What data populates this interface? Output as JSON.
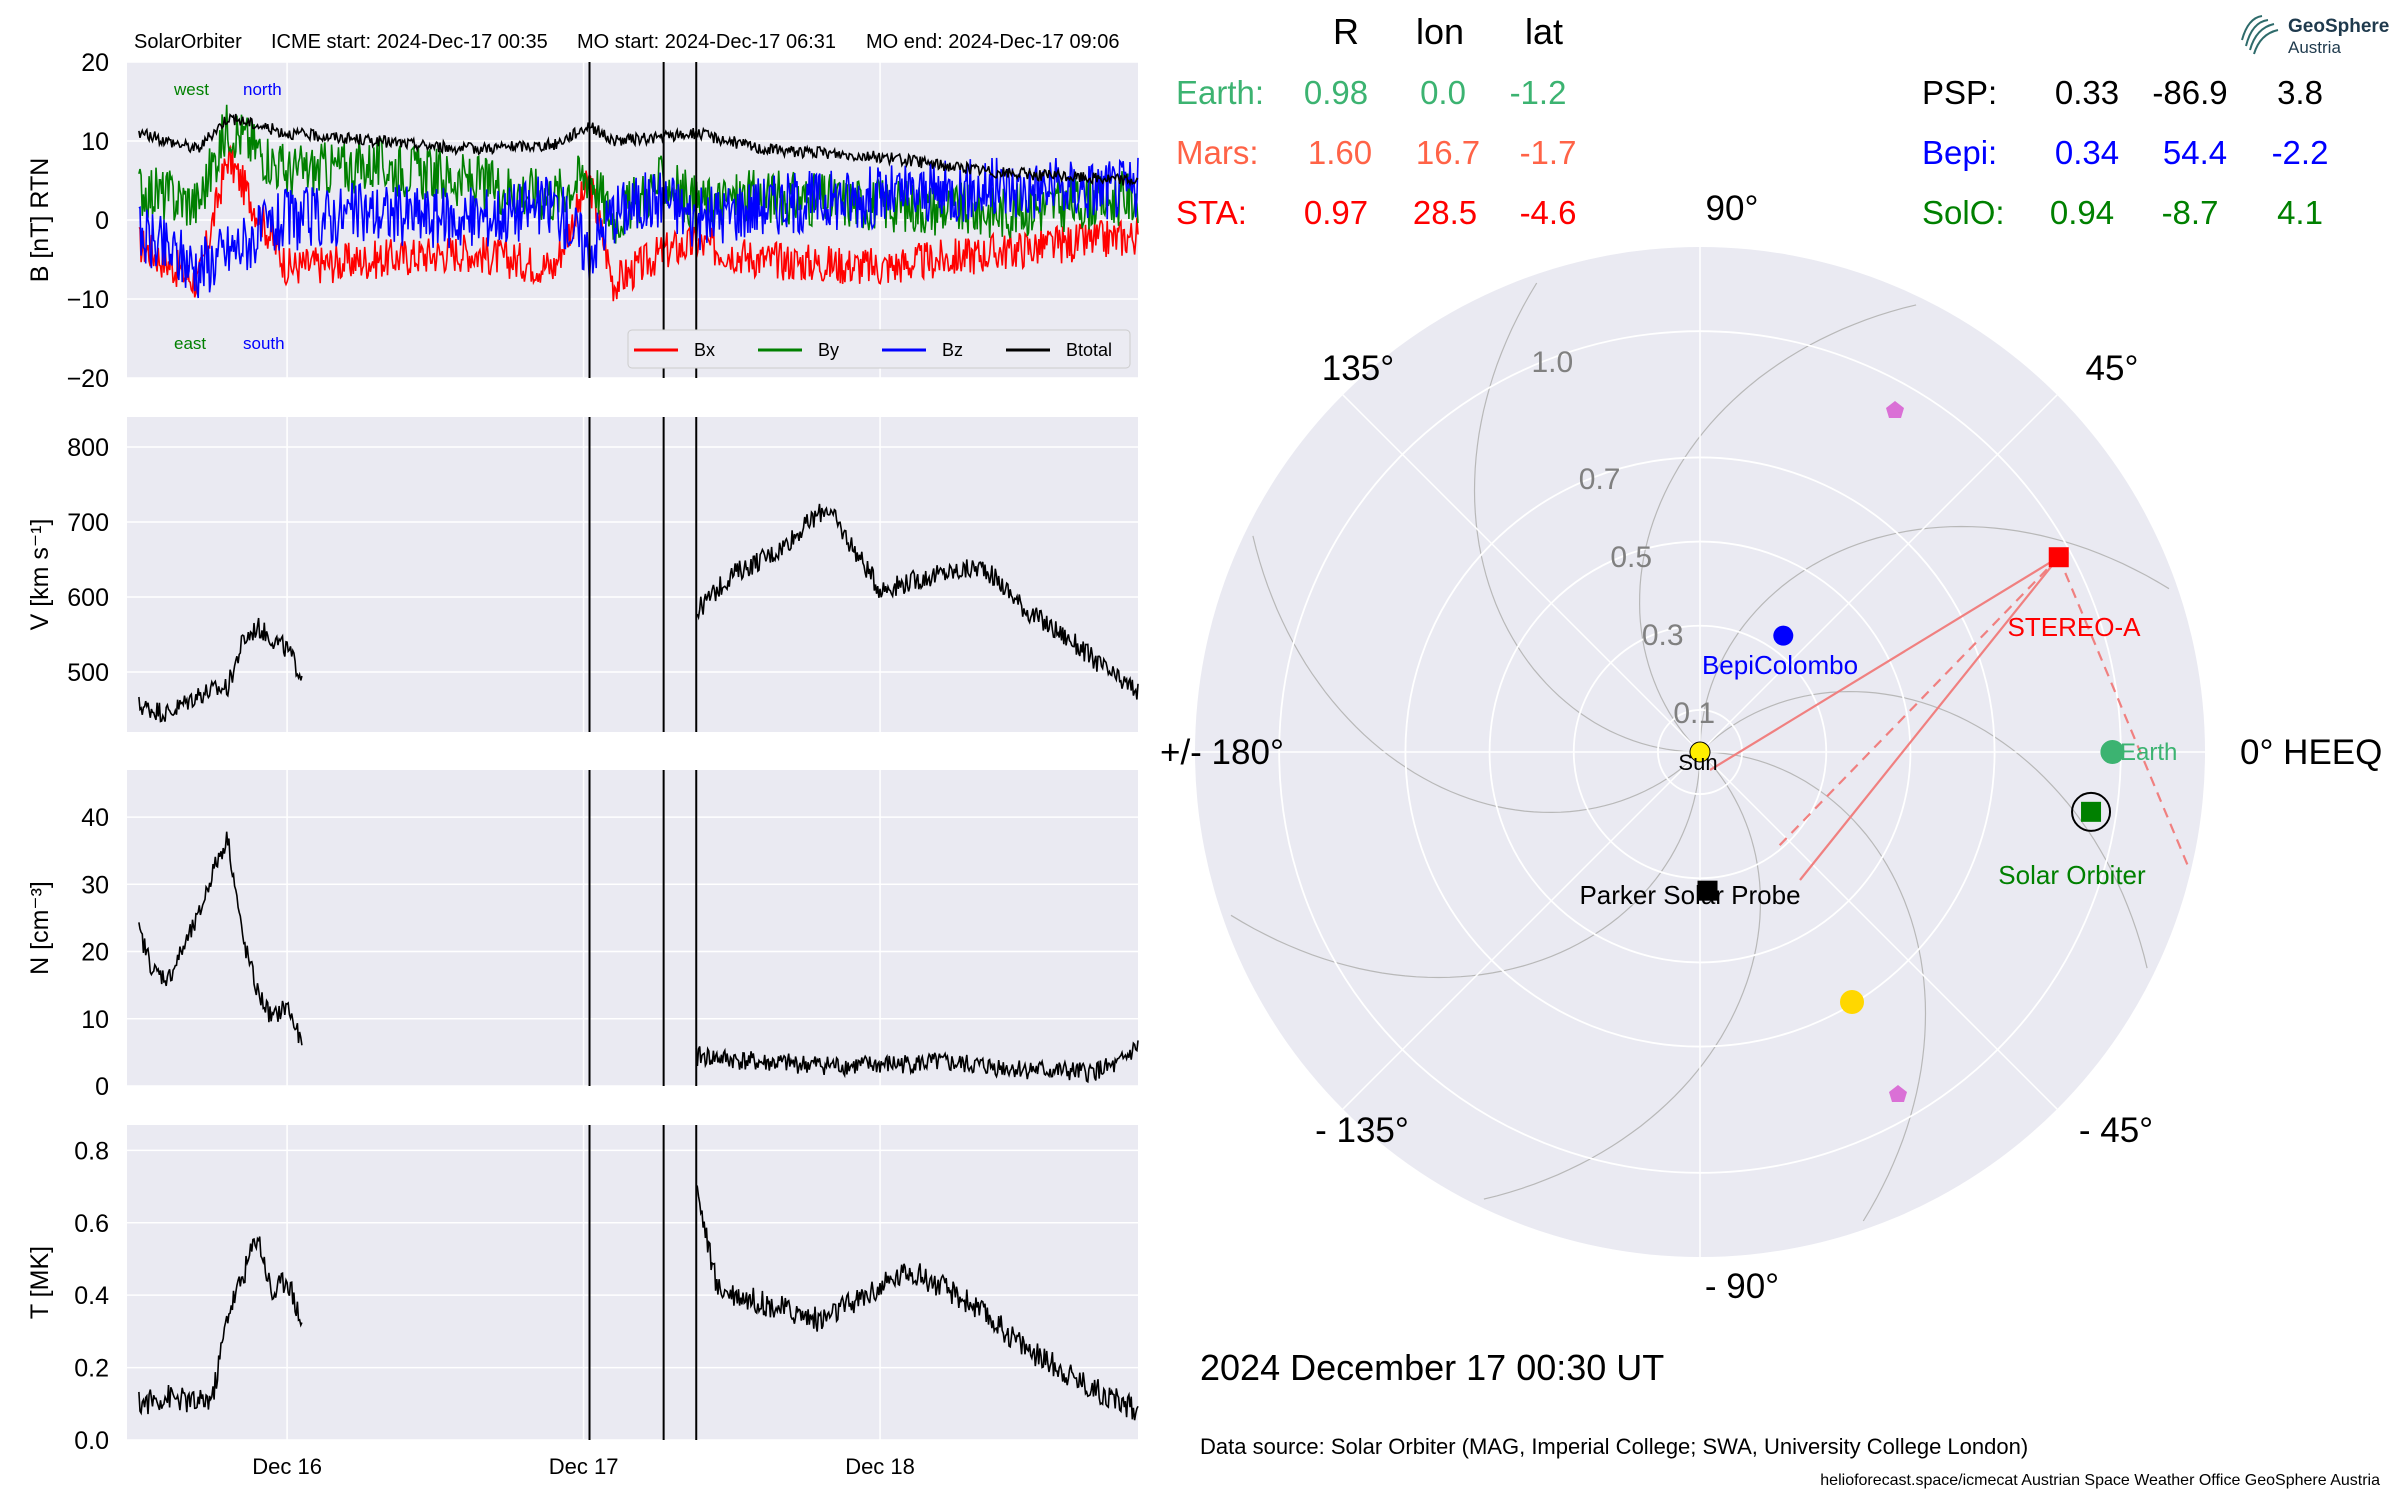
{
  "header": {
    "spacecraft": "SolarOrbiter",
    "icme_start": "ICME start: 2024-Dec-17 00:35",
    "mo_start": "MO start: 2024-Dec-17 06:31",
    "mo_end": "MO end: 2024-Dec-17 09:06"
  },
  "logo": {
    "line1": "GeoSphere",
    "line2": "Austria"
  },
  "position_table": {
    "columns": [
      "R",
      "lon",
      "lat"
    ],
    "left_rows": [
      {
        "name": "Earth:",
        "R": "0.98",
        "lon": "0.0",
        "lat": "-1.2",
        "color": "#3cb371"
      },
      {
        "name": "Mars:",
        "R": "1.60",
        "lon": "16.7",
        "lat": "-1.7",
        "color": "#ff6347"
      },
      {
        "name": "STA:",
        "R": "0.97",
        "lon": "28.5",
        "lat": "-4.6",
        "color": "#ff0000"
      }
    ],
    "right_rows": [
      {
        "name": "PSP:",
        "R": "0.33",
        "lon": "-86.9",
        "lat": "3.8",
        "color": "#000000"
      },
      {
        "name": "Bepi:",
        "R": "0.34",
        "lon": "54.4",
        "lat": "-2.2",
        "color": "#0000ff"
      },
      {
        "name": "SolO:",
        "R": "0.94",
        "lon": "-8.7",
        "lat": "4.1",
        "color": "#008000"
      }
    ]
  },
  "chart_data": [
    {
      "type": "line",
      "panel": "magnetic-field",
      "ylabel": "B [nT] RTN",
      "ylim": [
        -20,
        20
      ],
      "yticks": [
        "20",
        "10",
        "0",
        "−10",
        "−20"
      ],
      "xticks": [
        "Dec 16",
        "Dec 17",
        "Dec 18"
      ],
      "corner_labels": {
        "west": "west",
        "north": "north",
        "east": "east",
        "south": "south"
      },
      "legend": [
        "Bx",
        "By",
        "Bz",
        "Btotal"
      ],
      "series_colors": {
        "Bx": "#ff0000",
        "By": "#008000",
        "Bz": "#0000ff",
        "Btotal": "#000000"
      },
      "series": [
        {
          "name": "Btotal",
          "x": [
            15.5,
            15.7,
            15.8,
            16.0,
            16.3,
            16.6,
            16.9,
            17.02,
            17.1,
            17.27,
            17.38,
            17.6,
            18.0,
            18.4,
            18.87
          ],
          "values": [
            11,
            9,
            13,
            11,
            10,
            9,
            9.5,
            12,
            10,
            10.5,
            11,
            9,
            8,
            6,
            5
          ]
        },
        {
          "name": "Bx",
          "x": [
            15.5,
            15.7,
            15.8,
            16.0,
            16.3,
            16.6,
            16.9,
            17.02,
            17.1,
            17.27,
            17.38,
            17.6,
            18.0,
            18.4,
            18.87
          ],
          "values": [
            -3,
            -8,
            8,
            -6,
            -5,
            -4,
            -6,
            5,
            -8,
            -4,
            -3,
            -5,
            -6,
            -4,
            -2
          ]
        },
        {
          "name": "By",
          "x": [
            15.5,
            15.7,
            15.8,
            16.0,
            16.3,
            16.6,
            16.9,
            17.02,
            17.1,
            17.27,
            17.38,
            17.6,
            18.0,
            18.4,
            18.87
          ],
          "values": [
            4,
            2,
            12,
            6,
            7,
            5,
            3,
            6,
            0,
            5,
            2,
            3,
            2,
            1,
            3
          ]
        },
        {
          "name": "Bz",
          "x": [
            15.5,
            15.7,
            15.8,
            16.0,
            16.3,
            16.6,
            16.9,
            17.02,
            17.1,
            17.27,
            17.38,
            17.6,
            18.0,
            18.4,
            18.87
          ],
          "values": [
            -2,
            -6,
            -4,
            0,
            1,
            0,
            2,
            -4,
            1,
            3,
            0,
            2,
            3,
            4,
            4
          ]
        }
      ],
      "event_lines_day": [
        17.02,
        17.27,
        17.38
      ]
    },
    {
      "type": "line",
      "panel": "speed",
      "ylabel": "V [km s⁻¹]",
      "ylim": [
        420,
        840
      ],
      "yticks": [
        "800",
        "700",
        "600",
        "500"
      ],
      "segments": [
        {
          "x": [
            15.5,
            15.6,
            15.7,
            15.8,
            15.85,
            15.9,
            15.95,
            16.0,
            16.05
          ],
          "values": [
            455,
            445,
            470,
            480,
            540,
            560,
            545,
            530,
            495
          ]
        },
        {
          "x": [
            17.38,
            17.5,
            17.65,
            17.82,
            18.0,
            18.2,
            18.35,
            18.5,
            18.65,
            18.8,
            18.87
          ],
          "values": [
            580,
            630,
            660,
            720,
            610,
            630,
            640,
            580,
            540,
            490,
            475
          ]
        }
      ]
    },
    {
      "type": "line",
      "panel": "density",
      "ylabel": "N [cm⁻³]",
      "ylim": [
        0,
        47
      ],
      "yticks": [
        "40",
        "30",
        "20",
        "10",
        "0"
      ],
      "segments": [
        {
          "x": [
            15.5,
            15.55,
            15.6,
            15.7,
            15.75,
            15.8,
            15.85,
            15.9,
            15.95,
            16.0,
            16.05
          ],
          "values": [
            23,
            17,
            16,
            25,
            32,
            37,
            22,
            14,
            10,
            12,
            6
          ]
        },
        {
          "x": [
            17.38,
            17.6,
            17.9,
            18.2,
            18.5,
            18.7,
            18.8,
            18.87
          ],
          "values": [
            4.5,
            3.5,
            3,
            3.5,
            2.5,
            2,
            3,
            6
          ]
        }
      ]
    },
    {
      "type": "line",
      "panel": "temperature",
      "ylabel": "T [MK]",
      "ylim": [
        0,
        0.87
      ],
      "yticks": [
        "0.8",
        "0.6",
        "0.4",
        "0.2",
        "0.0"
      ],
      "segments": [
        {
          "x": [
            15.5,
            15.6,
            15.7,
            15.75,
            15.8,
            15.85,
            15.9,
            15.95,
            16.0,
            16.05
          ],
          "values": [
            0.1,
            0.12,
            0.1,
            0.12,
            0.35,
            0.45,
            0.57,
            0.4,
            0.45,
            0.32
          ]
        },
        {
          "x": [
            17.38,
            17.45,
            17.6,
            17.8,
            18.0,
            18.1,
            18.3,
            18.5,
            18.7,
            18.87
          ],
          "values": [
            0.7,
            0.42,
            0.38,
            0.33,
            0.42,
            0.47,
            0.38,
            0.25,
            0.15,
            0.08
          ]
        }
      ]
    },
    {
      "type": "scatter",
      "panel": "orbit-polar",
      "radial_ticks": [
        "0.1",
        "0.3",
        "0.5",
        "0.7",
        "1.0"
      ],
      "angle_labels": {
        "a0": "0° HEEQ",
        "a45": "45°",
        "a90": "90°",
        "a135": "135°",
        "a180": "+/- 180°",
        "am135": "- 135°",
        "am90": "- 90°",
        "am45": "- 45°"
      },
      "objects": [
        {
          "name": "Sun",
          "label": "Sun",
          "r": 0.0,
          "lon": 0.0,
          "color": "#ffee00",
          "marker": "circle"
        },
        {
          "name": "Earth",
          "label": "Earth",
          "r": 0.98,
          "lon": 0.0,
          "color": "#3cb371",
          "marker": "circle"
        },
        {
          "name": "STEREO-A",
          "label": "STEREO-A",
          "r": 0.97,
          "lon": 28.5,
          "color": "#ff0000",
          "marker": "square"
        },
        {
          "name": "BepiColombo",
          "label": "BepiColombo",
          "r": 0.34,
          "lon": 54.4,
          "color": "#0000ff",
          "marker": "circle"
        },
        {
          "name": "Parker Solar Probe",
          "label": "Parker Solar Probe",
          "r": 0.33,
          "lon": -86.9,
          "color": "#000000",
          "marker": "square"
        },
        {
          "name": "Solar Orbiter",
          "label": "Solar Orbiter",
          "r": 0.94,
          "lon": -8.7,
          "color": "#008000",
          "marker": "square"
        },
        {
          "name": "Mars",
          "label": "",
          "r": 1.6,
          "lon": 16.7,
          "color": "#ffd700",
          "marker": "circle"
        }
      ]
    }
  ],
  "footer": {
    "date": "2024 December 17  00:30 UT",
    "source": "Data source: Solar Orbiter (MAG, Imperial College; SWA, University College London)",
    "credits": "helioforecast.space/icmecat   Austrian Space Weather Office   GeoSphere Austria"
  }
}
